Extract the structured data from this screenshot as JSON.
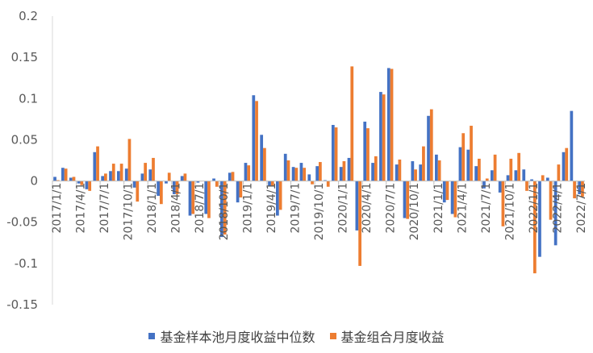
{
  "chart_data": {
    "type": "bar",
    "y_ticks": [
      "0.2",
      "0.15",
      "0.1",
      "0.05",
      "0",
      "-0.05",
      "-0.1",
      "-0.15"
    ],
    "ylim": [
      -0.15,
      0.2
    ],
    "x_tick_labels": [
      "2017/1/1",
      "2017/4/1",
      "2017/7/1",
      "2017/10/1",
      "2018/1/1",
      "2018/4/1",
      "2018/7/1",
      "2018/10/1",
      "2019/1/1",
      "2019/4/1",
      "2019/7/1",
      "2019/10/1",
      "2020/1/1",
      "2020/4/1",
      "2020/7/1",
      "2020/10/1",
      "2021/1/1",
      "2021/4/1",
      "2021/7/1",
      "2021/10/1",
      "2022/1/1",
      "2022/4/1",
      "2022/7/1"
    ],
    "series": [
      {
        "name": "基金样本池月度收益中位数",
        "color": "#4472C4",
        "values": [
          0.005,
          0.016,
          0.004,
          -0.003,
          -0.01,
          0.035,
          0.006,
          0.012,
          0.012,
          0.015,
          -0.008,
          0.009,
          0.014,
          -0.018,
          -0.003,
          -0.016,
          0.006,
          -0.042,
          -0.002,
          -0.04,
          0.003,
          -0.068,
          0.01,
          -0.026,
          0.022,
          0.104,
          0.056,
          -0.006,
          -0.042,
          0.033,
          0.017,
          0.022,
          0.008,
          0.018,
          0.001,
          0.068,
          0.017,
          0.028,
          -0.06,
          0.072,
          0.022,
          0.108,
          0.137,
          0.02,
          -0.045,
          0.024,
          0.02,
          0.079,
          0.032,
          -0.026,
          -0.04,
          0.041,
          0.038,
          0.018,
          -0.009,
          0.013,
          -0.014,
          0.007,
          0.013,
          0.014,
          0.002,
          -0.092,
          0.004,
          -0.078,
          0.035,
          0.085,
          -0.016
        ]
      },
      {
        "name": "基金组合月度收益",
        "color": "#ED7D31",
        "values": [
          0.001,
          0.015,
          0.005,
          -0.005,
          -0.012,
          0.042,
          0.009,
          0.021,
          0.021,
          0.051,
          -0.025,
          0.022,
          0.028,
          -0.028,
          0.01,
          -0.016,
          0.009,
          -0.04,
          0,
          -0.045,
          -0.007,
          -0.065,
          0.011,
          -0.02,
          0.019,
          0.097,
          0.04,
          -0.006,
          -0.035,
          0.025,
          0.016,
          0.016,
          -0.004,
          0.023,
          -0.007,
          0.065,
          0.024,
          0.139,
          -0.103,
          0.064,
          0.03,
          0.105,
          0.136,
          0.026,
          -0.046,
          0.014,
          0.042,
          0.087,
          0.025,
          -0.023,
          -0.044,
          0.058,
          0.067,
          0.027,
          0.003,
          0.032,
          -0.055,
          0.027,
          0.034,
          -0.012,
          -0.112,
          0.007,
          -0.047,
          0.02,
          0.04,
          -0.021,
          -0.019
        ]
      }
    ]
  }
}
